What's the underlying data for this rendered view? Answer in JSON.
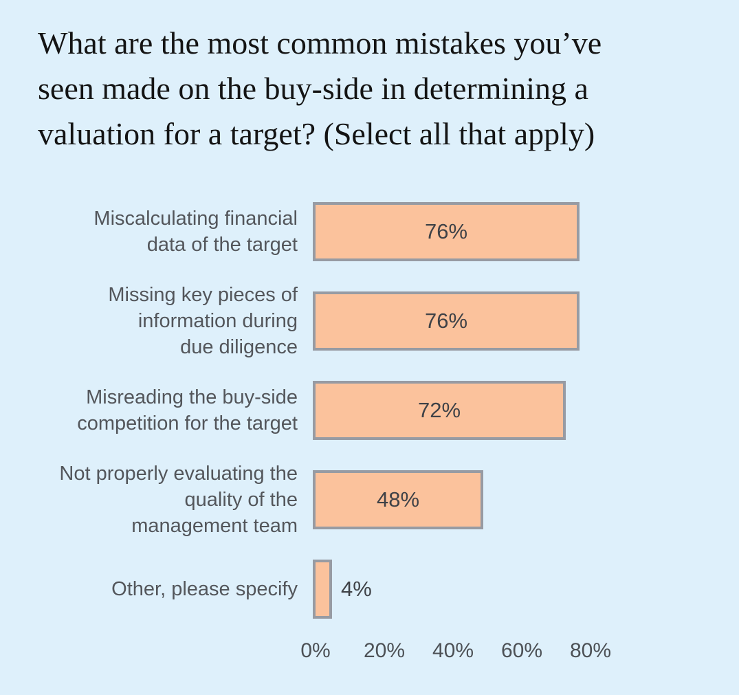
{
  "title": "What are the most common mistakes you’ve\nseen made on the buy-side in determining a\nvaluation for a target? (Select all that apply)",
  "chart_data": {
    "type": "bar",
    "orientation": "horizontal",
    "title": "What are the most common mistakes you’ve seen made on the buy-side in determining a valuation for a target? (Select all that apply)",
    "categories": [
      "Miscalculating financial\ndata of the target",
      "Missing key pieces of\ninformation during\ndue diligence",
      "Misreading the buy-side\ncompetition for the target",
      "Not properly evaluating the\nquality of the\nmanagement team",
      "Other, please specify"
    ],
    "values": [
      76,
      76,
      72,
      48,
      4
    ],
    "value_labels": [
      "76%",
      "76%",
      "72%",
      "48%",
      "4%"
    ],
    "value_label_placement": [
      "inside",
      "inside",
      "inside",
      "inside",
      "outside"
    ],
    "x_ticks": [
      "0%",
      "20%",
      "40%",
      "60%",
      "80%"
    ],
    "x_tick_values": [
      0,
      20,
      40,
      60,
      80
    ],
    "xlim": [
      0,
      80
    ],
    "xlabel": "",
    "ylabel": "",
    "grid": false,
    "legend": false,
    "bar_color": "#FBC29C",
    "bar_border_color": "#979BA3",
    "background_color": "#DEF0FB"
  }
}
